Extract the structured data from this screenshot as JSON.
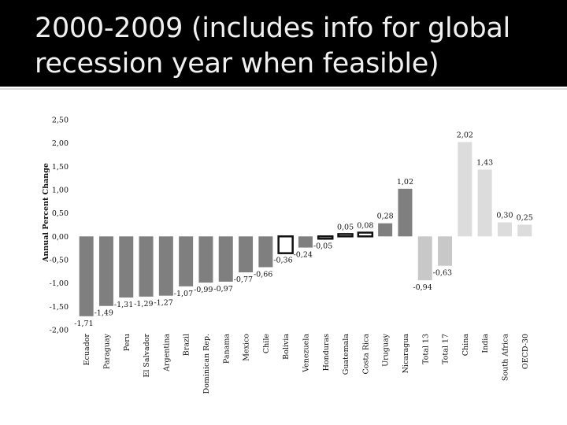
{
  "title": "2000-2009 (includes info for global recession year when feasible)",
  "chart_data": {
    "type": "bar",
    "title": "2000-2009 (includes info for global recession year when feasible)",
    "ylabel": "Annual Percent Change",
    "xlabel": "",
    "ylim": [
      -2.0,
      2.5
    ],
    "yticks": [
      2.5,
      2.0,
      1.5,
      1.0,
      0.5,
      0.0,
      -0.5,
      -1.0,
      -1.5,
      -2.0
    ],
    "ytick_labels": [
      "2,50",
      "2,00",
      "1,50",
      "1,00",
      "0,50",
      "0,00",
      "-0,50",
      "-1,00",
      "-1,50",
      "-2,00"
    ],
    "grid": false,
    "legend": "none",
    "categories": [
      "Ecuador",
      "Paraguay",
      "Peru",
      "El Salvador",
      "Argentina",
      "Brazil",
      "Dominican Rep.",
      "Panama",
      "Mexico",
      "Chile",
      "Bolivia",
      "Venezuela",
      "Honduras",
      "Guatemala",
      "Costa Rica",
      "Uruguay",
      "Nicaragua",
      "Total 13",
      "Total 17",
      "China",
      "India",
      "South Africa",
      "OECD-30"
    ],
    "values": [
      -1.71,
      -1.49,
      -1.31,
      -1.29,
      -1.27,
      -1.07,
      -0.99,
      -0.97,
      -0.77,
      -0.66,
      -0.36,
      -0.24,
      -0.05,
      0.05,
      0.08,
      0.28,
      1.02,
      -0.94,
      -0.63,
      2.02,
      1.43,
      0.3,
      0.25
    ],
    "value_labels": [
      "-1,71",
      "-1,49",
      "-1,31",
      "-1,29",
      "-1,27",
      "-1,07",
      "-0,99",
      "-0,97",
      "-0,77",
      "-0,66",
      "-0,36",
      "-0,24",
      "-0,05",
      "0,05",
      "0,08",
      "0,28",
      "1,02",
      "-0,94",
      "-0,63",
      "2,02",
      "1,43",
      "0,30",
      "0,25"
    ],
    "colors": [
      "#7f7f7f",
      "#7f7f7f",
      "#7f7f7f",
      "#7f7f7f",
      "#7f7f7f",
      "#7f7f7f",
      "#7f7f7f",
      "#7f7f7f",
      "#7f7f7f",
      "#7f7f7f",
      "#ffffff",
      "#7f7f7f",
      "#ffffff",
      "#ffffff",
      "#ffffff",
      "#7f7f7f",
      "#7f7f7f",
      "#c8c8c8",
      "#c8c8c8",
      "#dcdcdc",
      "#dcdcdc",
      "#dcdcdc",
      "#dcdcdc"
    ],
    "outlined": [
      false,
      false,
      false,
      false,
      false,
      false,
      false,
      false,
      false,
      false,
      true,
      false,
      true,
      true,
      true,
      false,
      false,
      false,
      false,
      false,
      false,
      false,
      false
    ]
  }
}
